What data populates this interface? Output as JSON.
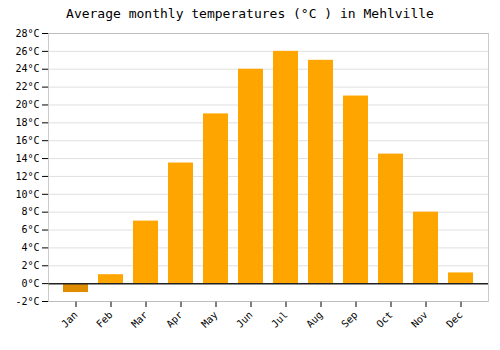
{
  "chart_data": {
    "type": "bar",
    "title": "Average monthly temperatures (°C ) in Mehlville",
    "categories": [
      "Jan",
      "Feb",
      "Mar",
      "Apr",
      "May",
      "Jun",
      "Jul",
      "Aug",
      "Sep",
      "Oct",
      "Nov",
      "Dec"
    ],
    "values": [
      -1.0,
      1.0,
      7.0,
      13.5,
      19.0,
      24.0,
      26.0,
      25.0,
      21.0,
      14.5,
      8.0,
      1.2
    ],
    "colors": [
      "#E08C00",
      "#FFA500",
      "#FFA500",
      "#FFA500",
      "#FFA500",
      "#FFA500",
      "#FFA500",
      "#FFA500",
      "#FFA500",
      "#FFA500",
      "#FFA500",
      "#FFA500"
    ],
    "ylim": [
      -2,
      28
    ],
    "yticks": [
      {
        "value": -2,
        "label": "-2°C"
      },
      {
        "value": 0,
        "label": "0°C"
      },
      {
        "value": 2,
        "label": "2°C"
      },
      {
        "value": 4,
        "label": "4°C"
      },
      {
        "value": 6,
        "label": "6°C"
      },
      {
        "value": 8,
        "label": "8°C"
      },
      {
        "value": 10,
        "label": "10°C"
      },
      {
        "value": 12,
        "label": "12°C"
      },
      {
        "value": 14,
        "label": "14°C"
      },
      {
        "value": 16,
        "label": "16°C"
      },
      {
        "value": 18,
        "label": "18°C"
      },
      {
        "value": 20,
        "label": "20°C"
      },
      {
        "value": 22,
        "label": "22°C"
      },
      {
        "value": 24,
        "label": "24°C"
      },
      {
        "value": 26,
        "label": "26°C"
      },
      {
        "value": 28,
        "label": "28°C"
      }
    ],
    "grid": true
  }
}
